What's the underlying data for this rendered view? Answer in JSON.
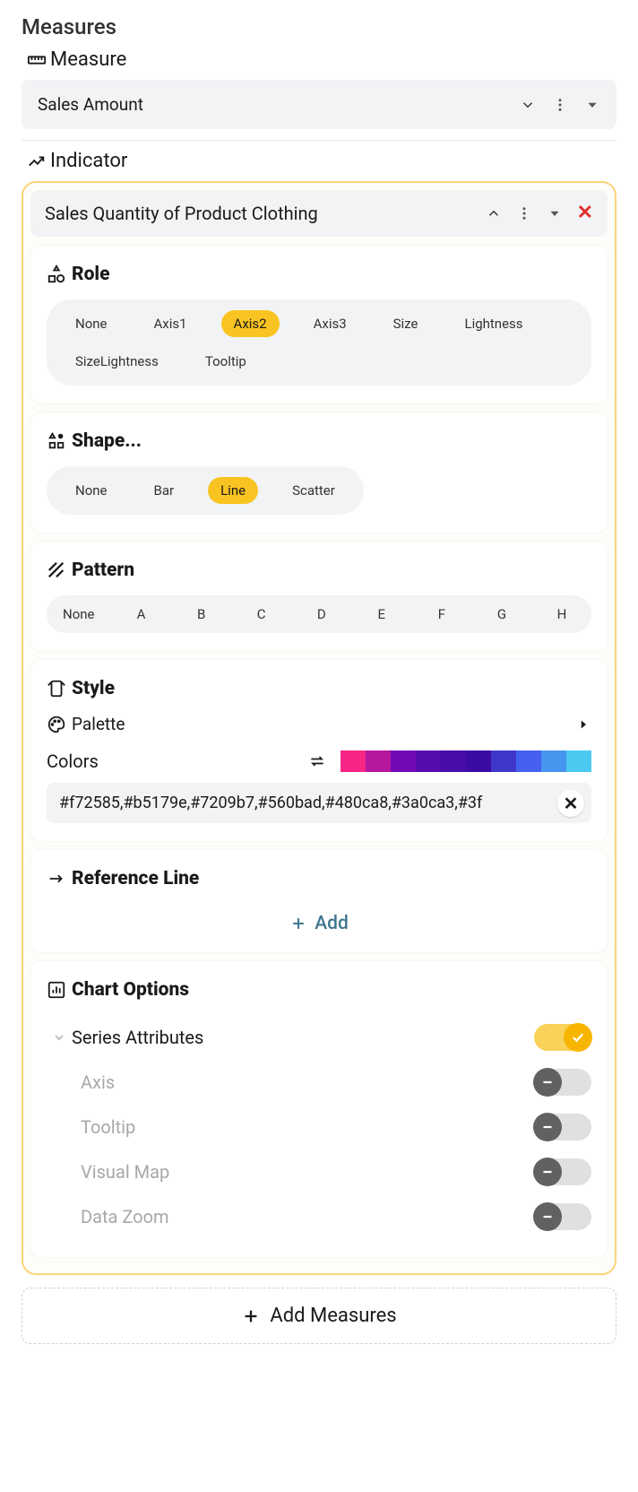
{
  "measures": {
    "heading": "Measures",
    "measure_label": "Measure",
    "selected": "Sales Amount"
  },
  "indicator": {
    "heading": "Indicator",
    "title": "Sales Quantity of Product Clothing",
    "role": {
      "title": "Role",
      "options": [
        "None",
        "Axis1",
        "Axis2",
        "Axis3",
        "Size",
        "Lightness",
        "SizeLightness",
        "Tooltip"
      ],
      "selected": "Axis2"
    },
    "shape": {
      "title": "Shape...",
      "options": [
        "None",
        "Bar",
        "Line",
        "Scatter"
      ],
      "selected": "Line"
    },
    "pattern": {
      "title": "Pattern",
      "options": [
        "None",
        "A",
        "B",
        "C",
        "D",
        "E",
        "F",
        "G",
        "H"
      ]
    },
    "style": {
      "title": "Style",
      "palette_label": "Palette",
      "colors_label": "Colors",
      "colors_value": "#f72585,#b5179e,#7209b7,#560bad,#480ca8,#3a0ca3,#3f",
      "swatches": [
        "#f72585",
        "#b5179e",
        "#7209b7",
        "#560bad",
        "#480ca8",
        "#3a0ca3",
        "#3f37c9",
        "#4361ee",
        "#4895ef",
        "#4cc9f0"
      ],
      "background_color": "#ffffff"
    },
    "reference_line": {
      "title": "Reference Line",
      "add_label": "Add"
    },
    "chart_options": {
      "title": "Chart Options",
      "items": [
        {
          "label": "Series Attributes",
          "enabled": true,
          "toplevel": true
        },
        {
          "label": "Axis",
          "enabled": false,
          "toplevel": false
        },
        {
          "label": "Tooltip",
          "enabled": false,
          "toplevel": false
        },
        {
          "label": "Visual Map",
          "enabled": false,
          "toplevel": false
        },
        {
          "label": "Data Zoom",
          "enabled": false,
          "toplevel": false
        }
      ]
    }
  },
  "add_measures_label": "Add Measures",
  "theme": {
    "card_border": "#f8d57a",
    "chip_selected_bg": "#f9c421",
    "text_color": "#1a1a1a",
    "muted_bg": "#f1f3f5",
    "link_color": "#417690"
  }
}
